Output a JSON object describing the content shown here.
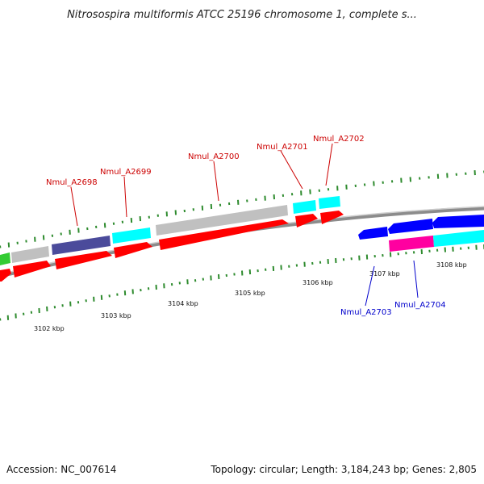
{
  "title": "Nitrosospira multiformis ATCC 25196 chromosome 1, complete s...",
  "footer": {
    "accession": "Accession: NC_007614",
    "summary": "Topology: circular; Length: 3,184,243 bp; Genes: 2,805"
  },
  "colors": {
    "backbone": "#8c8c8c",
    "gc_tick": "#2e8b2e",
    "forward_label": "#cc0000",
    "reverse_label": "#0000cc",
    "red": "#ff0000",
    "cyan": "#00ffff",
    "grey": "#c0c0c0",
    "navy": "#4b4b9b",
    "blue": "#0000ff",
    "magenta": "#ff00a0",
    "green": "#33cc33"
  },
  "ticks": [
    {
      "label": "3102 kbp"
    },
    {
      "label": "3103 kbp"
    },
    {
      "label": "3104 kbp"
    },
    {
      "label": "3105 kbp"
    },
    {
      "label": "3106 kbp"
    },
    {
      "label": "3107 kbp"
    },
    {
      "label": "3108 kbp"
    }
  ],
  "gene_labels": [
    {
      "name": "Nmul_A2698",
      "strand": "forward"
    },
    {
      "name": "Nmul_A2699",
      "strand": "forward"
    },
    {
      "name": "Nmul_A2700",
      "strand": "forward"
    },
    {
      "name": "Nmul_A2701",
      "strand": "forward"
    },
    {
      "name": "Nmul_A2702",
      "strand": "forward"
    },
    {
      "name": "Nmul_A2703",
      "strand": "reverse"
    },
    {
      "name": "Nmul_A2704",
      "strand": "reverse"
    }
  ]
}
